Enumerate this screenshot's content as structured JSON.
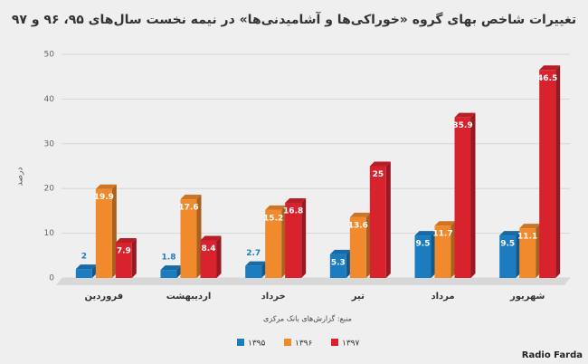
{
  "chart_data": {
    "type": "bar3d",
    "title": "تغییرات شاخص بهای گروه «خوراکی‌ها و آشامیدنی‌ها» در نیمه نخست سال‌های ۹۵، ۹۶ و ۹۷",
    "y_label": "درصد",
    "source": "منبع: گزارش‌های بانک مرکزی",
    "watermark": "Radio Farda",
    "categories": [
      "فروردین",
      "اردیبهشت",
      "خرداد",
      "تیر",
      "مرداد",
      "شهریور"
    ],
    "series": [
      {
        "name": "۱۳۹۵",
        "color": "#1b7dc0",
        "values": [
          2,
          1.8,
          2.7,
          5.3,
          9.5,
          9.5
        ]
      },
      {
        "name": "۱۳۹۶",
        "color": "#f08a2c",
        "values": [
          19.9,
          17.6,
          15.2,
          13.6,
          11.7,
          11.1
        ]
      },
      {
        "name": "۱۳۹۷",
        "color": "#d8232f",
        "values": [
          7.9,
          8.4,
          16.8,
          25,
          35.9,
          46.5
        ]
      }
    ],
    "ylim": [
      0,
      50
    ],
    "yticks": [
      0,
      10,
      20,
      30,
      40,
      50
    ],
    "grid": true
  }
}
